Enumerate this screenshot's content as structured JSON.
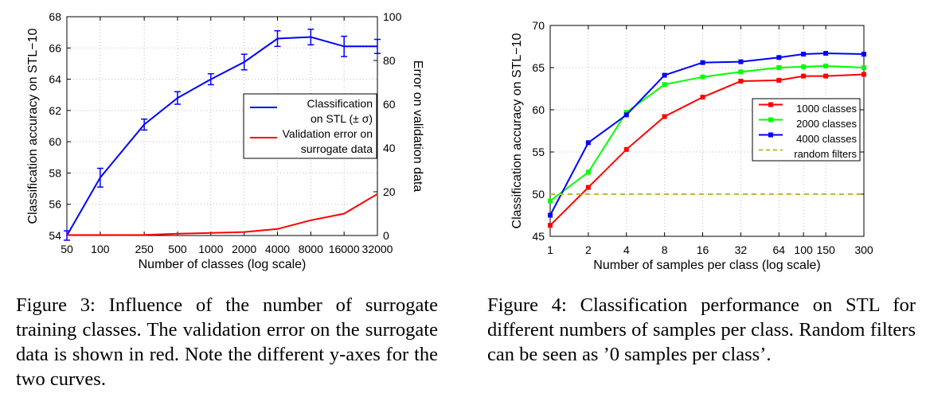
{
  "chart_data": [
    {
      "type": "line",
      "title": "",
      "xlabel": "Number of classes (log scale)",
      "ylabel": "Classification accuracy on STL−10",
      "y2label": "Error on validation data",
      "xscale": "log",
      "x_ticks": [
        50,
        100,
        250,
        500,
        1000,
        2000,
        4000,
        8000,
        16000,
        32000
      ],
      "x_tick_labels": [
        "50",
        "100",
        "250",
        "500",
        "1000",
        "2000",
        "4000",
        "8000",
        "16000",
        "32000"
      ],
      "xlim": [
        50,
        32000
      ],
      "ylim": [
        54,
        68
      ],
      "y_ticks": [
        54,
        56,
        58,
        60,
        62,
        64,
        66,
        68
      ],
      "y2lim": [
        0,
        100
      ],
      "y2_ticks": [
        0,
        20,
        40,
        60,
        80,
        100
      ],
      "grid": true,
      "legend_position": "center-right",
      "series": [
        {
          "name": "Classification on STL (± σ)",
          "legend_lines": [
            "Classification",
            "on STL (± σ)"
          ],
          "color": "#0000ff",
          "axis": "left",
          "x": [
            50,
            100,
            250,
            500,
            1000,
            2000,
            4000,
            8000,
            16000,
            32000
          ],
          "y": [
            54.0,
            57.7,
            61.1,
            62.8,
            64.0,
            65.1,
            66.6,
            66.7,
            66.1,
            66.1
          ],
          "err": [
            0.3,
            0.6,
            0.35,
            0.4,
            0.35,
            0.5,
            0.5,
            0.5,
            0.65,
            0.45
          ]
        },
        {
          "name": "Validation error on surrogate data",
          "legend_lines": [
            "Validation error on",
            "surrogate data"
          ],
          "color": "#ff0000",
          "axis": "right",
          "x": [
            50,
            100,
            250,
            500,
            1000,
            2000,
            4000,
            8000,
            16000,
            32000
          ],
          "y": [
            0.2,
            0.2,
            0.3,
            0.8,
            1.2,
            1.6,
            3.0,
            7.0,
            10.0,
            19.0
          ]
        }
      ]
    },
    {
      "type": "line",
      "title": "",
      "xlabel": "Number of samples per class (log scale)",
      "ylabel": "Classification accuracy on STL−10",
      "xscale": "log",
      "x_ticks": [
        1,
        2,
        4,
        8,
        16,
        32,
        64,
        100,
        150,
        300
      ],
      "x_tick_labels": [
        "1",
        "2",
        "4",
        "8",
        "16",
        "32",
        "64",
        "100",
        "150",
        "300"
      ],
      "xlim": [
        1,
        300
      ],
      "ylim": [
        45,
        70
      ],
      "y_ticks": [
        45,
        50,
        55,
        60,
        65,
        70
      ],
      "grid": true,
      "legend_position": "center-right",
      "series": [
        {
          "name": "1000 classes",
          "color": "#ff0000",
          "x": [
            1,
            2,
            4,
            8,
            16,
            32,
            64,
            100,
            150,
            300
          ],
          "y": [
            46.3,
            50.8,
            55.3,
            59.2,
            61.5,
            63.4,
            63.5,
            64.0,
            64.0,
            64.2
          ]
        },
        {
          "name": "2000 classes",
          "color": "#00ff00",
          "x": [
            1,
            2,
            4,
            8,
            16,
            32,
            64,
            100,
            150,
            300
          ],
          "y": [
            49.2,
            52.6,
            59.7,
            63.0,
            63.9,
            64.5,
            65.0,
            65.1,
            65.2,
            65.0
          ]
        },
        {
          "name": "4000 classes",
          "color": "#0000ff",
          "x": [
            1,
            2,
            4,
            8,
            16,
            32,
            64,
            100,
            150,
            300
          ],
          "y": [
            47.5,
            56.1,
            59.4,
            64.1,
            65.6,
            65.7,
            66.2,
            66.6,
            66.7,
            66.6
          ]
        },
        {
          "name": "random filters",
          "color": "#b8b840",
          "dashed": true,
          "x": [
            1,
            300
          ],
          "y": [
            50.0,
            50.0
          ]
        }
      ]
    }
  ],
  "captions": {
    "fig3": "Figure 3: Influence of the number of surrogate training classes. The validation error on the surrogate data is shown in red. Note the different y-axes for the two curves.",
    "fig4": "Figure 4: Classification performance on STL for different numbers of samples per class. Random filters can be seen as ’0 samples per class’."
  }
}
